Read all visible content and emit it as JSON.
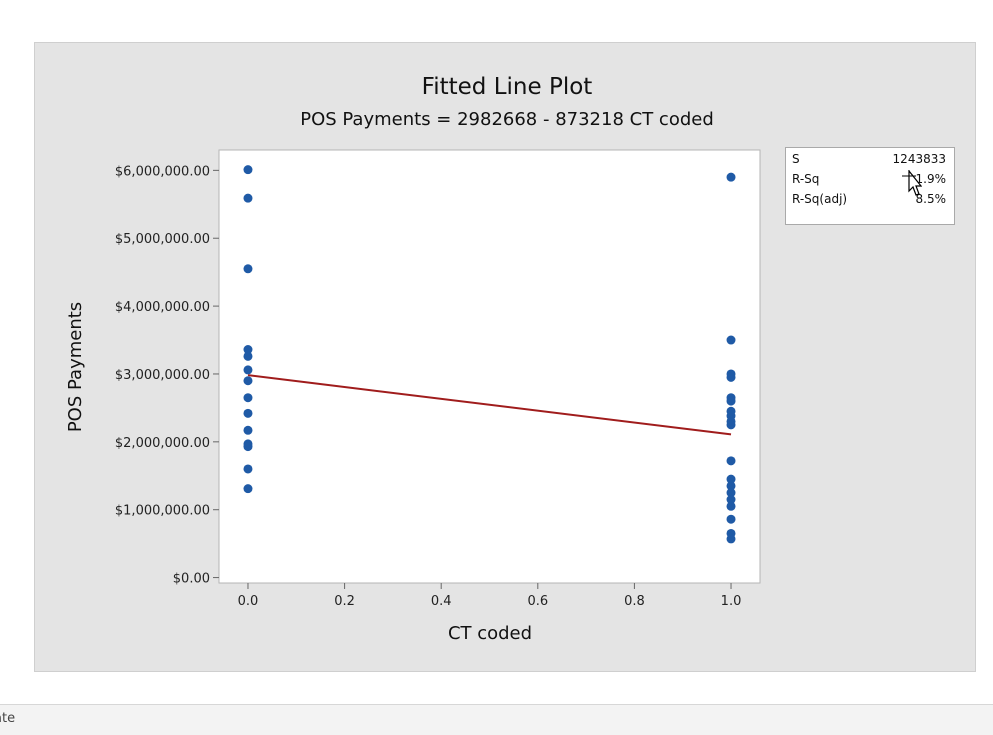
{
  "chart_data": {
    "type": "scatter",
    "title": "Fitted Line Plot",
    "subtitle": "POS Payments = 2982668 - 873218 CT coded",
    "xlabel": "CT coded",
    "ylabel": "POS Payments",
    "xlim": [
      -0.06,
      1.06
    ],
    "ylim": [
      -80000,
      6300000
    ],
    "x_ticks": [
      0.0,
      0.2,
      0.4,
      0.6,
      0.8,
      1.0
    ],
    "x_tick_labels": [
      "0.0",
      "0.2",
      "0.4",
      "0.6",
      "0.8",
      "1.0"
    ],
    "y_ticks": [
      0,
      1000000,
      2000000,
      3000000,
      4000000,
      5000000,
      6000000
    ],
    "y_tick_labels": [
      "$0.00",
      "$1,000,000.00",
      "$2,000,000.00",
      "$3,000,000.00",
      "$4,000,000.00",
      "$5,000,000.00",
      "$6,000,000.00"
    ],
    "points": [
      {
        "x": 0,
        "y": 6010000
      },
      {
        "x": 0,
        "y": 5590000
      },
      {
        "x": 0,
        "y": 4550000
      },
      {
        "x": 0,
        "y": 3360000
      },
      {
        "x": 0,
        "y": 3260000
      },
      {
        "x": 0,
        "y": 3060000
      },
      {
        "x": 0,
        "y": 2900000
      },
      {
        "x": 0,
        "y": 2650000
      },
      {
        "x": 0,
        "y": 2420000
      },
      {
        "x": 0,
        "y": 2170000
      },
      {
        "x": 0,
        "y": 1970000
      },
      {
        "x": 0,
        "y": 1930000
      },
      {
        "x": 0,
        "y": 1600000
      },
      {
        "x": 0,
        "y": 1310000
      },
      {
        "x": 1,
        "y": 5900000
      },
      {
        "x": 1,
        "y": 3500000
      },
      {
        "x": 1,
        "y": 3000000
      },
      {
        "x": 1,
        "y": 2950000
      },
      {
        "x": 1,
        "y": 2650000
      },
      {
        "x": 1,
        "y": 2600000
      },
      {
        "x": 1,
        "y": 2450000
      },
      {
        "x": 1,
        "y": 2380000
      },
      {
        "x": 1,
        "y": 2300000
      },
      {
        "x": 1,
        "y": 2250000
      },
      {
        "x": 1,
        "y": 1720000
      },
      {
        "x": 1,
        "y": 1450000
      },
      {
        "x": 1,
        "y": 1350000
      },
      {
        "x": 1,
        "y": 1250000
      },
      {
        "x": 1,
        "y": 1150000
      },
      {
        "x": 1,
        "y": 1050000
      },
      {
        "x": 1,
        "y": 860000
      },
      {
        "x": 1,
        "y": 650000
      },
      {
        "x": 1,
        "y": 570000
      }
    ],
    "fit": {
      "intercept": 2982668,
      "slope": -873218,
      "x_range": [
        0,
        1
      ]
    },
    "point_color": "#1f5aa6",
    "line_color": "#a01c1c",
    "grid": false
  },
  "stats": [
    {
      "label": "S",
      "value": "1243833"
    },
    {
      "label": "R-Sq",
      "value": "11.9%"
    },
    {
      "label": "R-Sq(adj)",
      "value": "8.5%"
    }
  ],
  "status_bar": {
    "text": "ate"
  }
}
